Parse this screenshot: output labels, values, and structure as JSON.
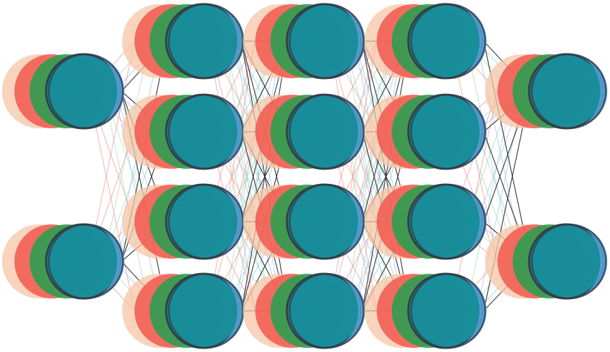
{
  "diagram": {
    "kind": "neural-network",
    "layers": [
      2,
      4,
      4,
      4,
      2
    ],
    "stack_colors": [
      "#f5c6a5",
      "#f2584f",
      "#2e9e50",
      "#5aa3db"
    ],
    "front_node_color": "#138a95",
    "node_border_color": "#333f4a",
    "edge_stack_colors": [
      "#f28b8b",
      "#9dd8b6",
      "#8fc2e8"
    ],
    "edge_front_color": "#1f1f1f"
  }
}
